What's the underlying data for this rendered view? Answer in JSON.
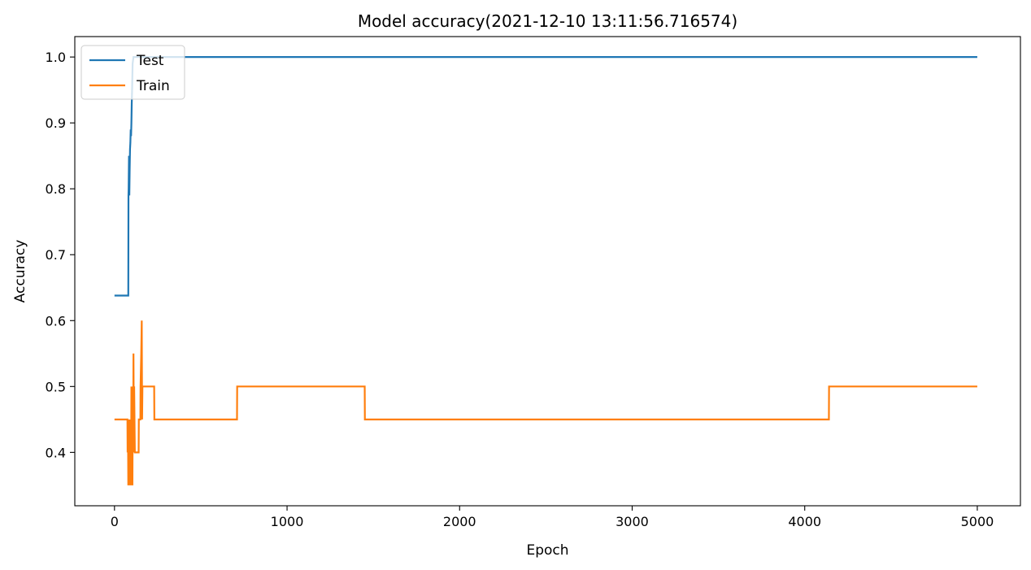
{
  "chart_data": {
    "type": "line",
    "title": "Model accuracy(2021-12-10 13:11:56.716574)",
    "xlabel": "Epoch",
    "ylabel": "Accuracy",
    "xlim": [
      -230,
      5250
    ],
    "ylim": [
      0.319,
      1.031
    ],
    "xticks": [
      0,
      1000,
      2000,
      3000,
      4000,
      5000
    ],
    "xtick_labels": [
      "0",
      "1000",
      "2000",
      "3000",
      "4000",
      "5000"
    ],
    "yticks": [
      0.4,
      0.5,
      0.6,
      0.7,
      0.8,
      0.9,
      1.0
    ],
    "ytick_labels": [
      "0.4",
      "0.5",
      "0.6",
      "0.7",
      "0.8",
      "0.9",
      "1.0"
    ],
    "grid": false,
    "legend_position": "upper-left",
    "series": [
      {
        "name": "Test",
        "color": "#1f77b4",
        "x": [
          0,
          80,
          81,
          82,
          84,
          86,
          88,
          90,
          92,
          94,
          96,
          98,
          100,
          102,
          105,
          110,
          115,
          5000
        ],
        "y": [
          0.638,
          0.638,
          0.79,
          0.8,
          0.85,
          0.79,
          0.83,
          0.86,
          0.87,
          0.89,
          0.88,
          0.9,
          0.93,
          0.95,
          0.99,
          1.0,
          1.0,
          1.0
        ]
      },
      {
        "name": "Train",
        "color": "#ff7f0e",
        "x": [
          0,
          75,
          76,
          78,
          80,
          82,
          84,
          86,
          88,
          90,
          92,
          94,
          96,
          98,
          100,
          102,
          104,
          106,
          108,
          110,
          112,
          114,
          116,
          118,
          120,
          140,
          141,
          150,
          151,
          155,
          158,
          160,
          162,
          165,
          170,
          175,
          180,
          230,
          231,
          710,
          711,
          1450,
          1451,
          4140,
          4141,
          5000
        ],
        "y": [
          0.45,
          0.45,
          0.4,
          0.45,
          0.35,
          0.45,
          0.35,
          0.4,
          0.35,
          0.45,
          0.35,
          0.45,
          0.35,
          0.5,
          0.4,
          0.5,
          0.35,
          0.5,
          0.4,
          0.55,
          0.45,
          0.5,
          0.45,
          0.4,
          0.4,
          0.4,
          0.45,
          0.45,
          0.5,
          0.55,
          0.6,
          0.45,
          0.5,
          0.5,
          0.5,
          0.5,
          0.5,
          0.5,
          0.45,
          0.45,
          0.5,
          0.5,
          0.45,
          0.45,
          0.5,
          0.5
        ]
      }
    ]
  }
}
